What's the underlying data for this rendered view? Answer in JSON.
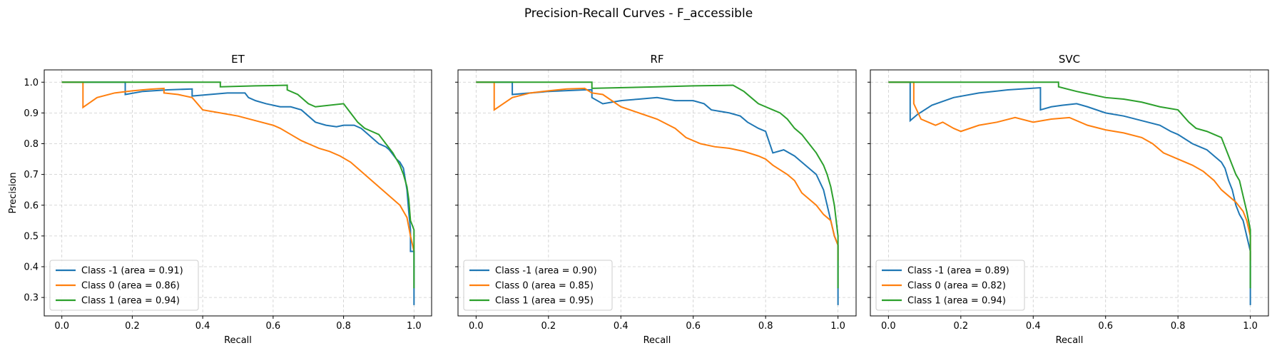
{
  "figure": {
    "suptitle": "Precision-Recall Curves - F_accessible",
    "colors": {
      "class_-1": "#1f77b4",
      "class_0": "#ff7f0e",
      "class_1": "#2ca02c"
    }
  },
  "chart_data": [
    {
      "type": "line",
      "title": "ET",
      "xlabel": "Recall",
      "ylabel": "Precision",
      "xlim": [
        -0.05,
        1.05
      ],
      "ylim": [
        0.24,
        1.04
      ],
      "xticks": [
        "0.0",
        "0.2",
        "0.4",
        "0.6",
        "0.8",
        "1.0"
      ],
      "yticks": [
        "0.3",
        "0.4",
        "0.5",
        "0.6",
        "0.7",
        "0.8",
        "0.9",
        "1.0"
      ],
      "grid": true,
      "legend_position": "lower-left",
      "series": [
        {
          "name": "Class -1 (area = 0.91)",
          "color": "#1f77b4",
          "x": [
            0.0,
            0.18,
            0.18,
            0.23,
            0.3,
            0.37,
            0.37,
            0.42,
            0.47,
            0.52,
            0.53,
            0.55,
            0.58,
            0.62,
            0.65,
            0.68,
            0.7,
            0.72,
            0.75,
            0.78,
            0.8,
            0.83,
            0.85,
            0.88,
            0.9,
            0.92,
            0.93,
            0.95,
            0.96,
            0.97,
            0.98,
            0.985,
            0.99,
            0.99,
            1.0,
            1.0
          ],
          "y": [
            1.0,
            1.0,
            0.96,
            0.97,
            0.975,
            0.978,
            0.955,
            0.96,
            0.965,
            0.965,
            0.95,
            0.94,
            0.93,
            0.92,
            0.92,
            0.91,
            0.89,
            0.87,
            0.86,
            0.855,
            0.86,
            0.86,
            0.85,
            0.82,
            0.8,
            0.79,
            0.78,
            0.75,
            0.74,
            0.72,
            0.65,
            0.58,
            0.52,
            0.45,
            0.45,
            0.275
          ]
        },
        {
          "name": "Class 0 (area = 0.86)",
          "color": "#ff7f0e",
          "x": [
            0.0,
            0.06,
            0.06,
            0.1,
            0.15,
            0.2,
            0.25,
            0.29,
            0.29,
            0.33,
            0.37,
            0.4,
            0.45,
            0.5,
            0.55,
            0.6,
            0.62,
            0.65,
            0.68,
            0.7,
            0.73,
            0.76,
            0.79,
            0.82,
            0.84,
            0.86,
            0.88,
            0.9,
            0.92,
            0.94,
            0.96,
            0.97,
            0.98,
            0.99,
            1.0,
            1.0
          ],
          "y": [
            1.0,
            1.0,
            0.918,
            0.95,
            0.965,
            0.972,
            0.977,
            0.98,
            0.965,
            0.96,
            0.95,
            0.91,
            0.9,
            0.89,
            0.875,
            0.86,
            0.85,
            0.83,
            0.81,
            0.8,
            0.785,
            0.775,
            0.76,
            0.74,
            0.72,
            0.7,
            0.68,
            0.66,
            0.64,
            0.62,
            0.6,
            0.58,
            0.56,
            0.5,
            0.45,
            0.45
          ]
        },
        {
          "name": "Class 1 (area = 0.94)",
          "color": "#2ca02c",
          "x": [
            0.0,
            0.45,
            0.45,
            0.55,
            0.64,
            0.64,
            0.67,
            0.7,
            0.72,
            0.8,
            0.82,
            0.84,
            0.86,
            0.88,
            0.9,
            0.92,
            0.94,
            0.95,
            0.96,
            0.97,
            0.98,
            0.985,
            0.99,
            1.0,
            1.0
          ],
          "y": [
            1.0,
            1.0,
            0.985,
            0.988,
            0.99,
            0.975,
            0.96,
            0.93,
            0.92,
            0.93,
            0.9,
            0.87,
            0.85,
            0.84,
            0.83,
            0.8,
            0.77,
            0.75,
            0.73,
            0.7,
            0.66,
            0.62,
            0.55,
            0.52,
            0.33
          ]
        }
      ]
    },
    {
      "type": "line",
      "title": "RF",
      "xlabel": "Recall",
      "ylabel": "",
      "xlim": [
        -0.05,
        1.05
      ],
      "ylim": [
        0.24,
        1.04
      ],
      "xticks": [
        "0.0",
        "0.2",
        "0.4",
        "0.6",
        "0.8",
        "1.0"
      ],
      "yticks": [],
      "grid": true,
      "legend_position": "lower-left",
      "series": [
        {
          "name": "Class -1 (area = 0.90)",
          "color": "#1f77b4",
          "x": [
            0.0,
            0.1,
            0.1,
            0.2,
            0.3,
            0.32,
            0.32,
            0.35,
            0.4,
            0.45,
            0.5,
            0.55,
            0.6,
            0.63,
            0.65,
            0.7,
            0.73,
            0.75,
            0.78,
            0.8,
            0.82,
            0.85,
            0.88,
            0.9,
            0.92,
            0.94,
            0.96,
            0.97,
            0.98,
            0.99,
            1.0,
            1.0
          ],
          "y": [
            1.0,
            1.0,
            0.96,
            0.97,
            0.975,
            0.975,
            0.95,
            0.93,
            0.94,
            0.945,
            0.95,
            0.94,
            0.94,
            0.93,
            0.91,
            0.9,
            0.89,
            0.87,
            0.85,
            0.84,
            0.77,
            0.78,
            0.76,
            0.74,
            0.72,
            0.7,
            0.65,
            0.6,
            0.55,
            0.5,
            0.47,
            0.275
          ]
        },
        {
          "name": "Class 0 (area = 0.85)",
          "color": "#ff7f0e",
          "x": [
            0.0,
            0.05,
            0.05,
            0.1,
            0.15,
            0.2,
            0.25,
            0.3,
            0.32,
            0.35,
            0.4,
            0.45,
            0.5,
            0.55,
            0.58,
            0.62,
            0.66,
            0.7,
            0.74,
            0.78,
            0.8,
            0.82,
            0.84,
            0.86,
            0.88,
            0.9,
            0.92,
            0.94,
            0.96,
            0.98,
            0.99,
            1.0,
            1.0
          ],
          "y": [
            1.0,
            1.0,
            0.91,
            0.95,
            0.965,
            0.972,
            0.978,
            0.98,
            0.965,
            0.96,
            0.92,
            0.9,
            0.88,
            0.85,
            0.82,
            0.8,
            0.79,
            0.785,
            0.775,
            0.76,
            0.75,
            0.73,
            0.715,
            0.7,
            0.68,
            0.64,
            0.62,
            0.6,
            0.57,
            0.55,
            0.5,
            0.47,
            0.42
          ]
        },
        {
          "name": "Class 1 (area = 0.95)",
          "color": "#2ca02c",
          "x": [
            0.0,
            0.32,
            0.32,
            0.5,
            0.6,
            0.71,
            0.74,
            0.76,
            0.78,
            0.8,
            0.82,
            0.84,
            0.86,
            0.88,
            0.9,
            0.92,
            0.94,
            0.96,
            0.97,
            0.98,
            0.99,
            1.0,
            1.0
          ],
          "y": [
            1.0,
            1.0,
            0.98,
            0.985,
            0.988,
            0.99,
            0.97,
            0.95,
            0.93,
            0.92,
            0.91,
            0.9,
            0.88,
            0.85,
            0.83,
            0.8,
            0.77,
            0.73,
            0.7,
            0.66,
            0.6,
            0.5,
            0.33
          ]
        }
      ]
    },
    {
      "type": "line",
      "title": "SVC",
      "xlabel": "Recall",
      "ylabel": "",
      "xlim": [
        -0.05,
        1.05
      ],
      "ylim": [
        0.24,
        1.04
      ],
      "xticks": [
        "0.0",
        "0.2",
        "0.4",
        "0.6",
        "0.8",
        "1.0"
      ],
      "yticks": [],
      "grid": true,
      "legend_position": "lower-left",
      "series": [
        {
          "name": "Class -1 (area = 0.89)",
          "color": "#1f77b4",
          "x": [
            0.0,
            0.06,
            0.06,
            0.08,
            0.12,
            0.18,
            0.25,
            0.33,
            0.42,
            0.42,
            0.45,
            0.48,
            0.52,
            0.55,
            0.6,
            0.65,
            0.7,
            0.75,
            0.78,
            0.8,
            0.84,
            0.86,
            0.88,
            0.9,
            0.92,
            0.93,
            0.94,
            0.95,
            0.96,
            0.97,
            0.98,
            0.99,
            1.0,
            1.0
          ],
          "y": [
            1.0,
            1.0,
            0.875,
            0.895,
            0.925,
            0.95,
            0.965,
            0.975,
            0.982,
            0.91,
            0.92,
            0.925,
            0.93,
            0.92,
            0.9,
            0.89,
            0.875,
            0.86,
            0.84,
            0.83,
            0.8,
            0.79,
            0.78,
            0.76,
            0.74,
            0.72,
            0.68,
            0.65,
            0.6,
            0.57,
            0.55,
            0.5,
            0.45,
            0.275
          ]
        },
        {
          "name": "Class 0 (area = 0.82)",
          "color": "#ff7f0e",
          "x": [
            0.0,
            0.07,
            0.07,
            0.09,
            0.11,
            0.13,
            0.15,
            0.18,
            0.2,
            0.25,
            0.3,
            0.35,
            0.4,
            0.45,
            0.5,
            0.55,
            0.6,
            0.65,
            0.7,
            0.73,
            0.76,
            0.8,
            0.84,
            0.87,
            0.9,
            0.92,
            0.94,
            0.96,
            0.98,
            0.99,
            1.0,
            1.0
          ],
          "y": [
            1.0,
            1.0,
            0.93,
            0.88,
            0.87,
            0.86,
            0.87,
            0.85,
            0.84,
            0.86,
            0.87,
            0.885,
            0.87,
            0.88,
            0.885,
            0.86,
            0.845,
            0.835,
            0.82,
            0.8,
            0.77,
            0.75,
            0.73,
            0.71,
            0.68,
            0.65,
            0.63,
            0.61,
            0.58,
            0.55,
            0.5,
            0.42
          ]
        },
        {
          "name": "Class 1 (area = 0.94)",
          "color": "#2ca02c",
          "x": [
            0.0,
            0.47,
            0.47,
            0.52,
            0.56,
            0.6,
            0.65,
            0.7,
            0.75,
            0.8,
            0.83,
            0.85,
            0.88,
            0.9,
            0.92,
            0.93,
            0.94,
            0.95,
            0.96,
            0.97,
            0.98,
            0.99,
            1.0,
            1.0
          ],
          "y": [
            1.0,
            1.0,
            0.985,
            0.97,
            0.96,
            0.95,
            0.945,
            0.935,
            0.92,
            0.91,
            0.87,
            0.85,
            0.84,
            0.83,
            0.82,
            0.79,
            0.76,
            0.73,
            0.7,
            0.68,
            0.63,
            0.58,
            0.52,
            0.33
          ]
        }
      ]
    }
  ]
}
